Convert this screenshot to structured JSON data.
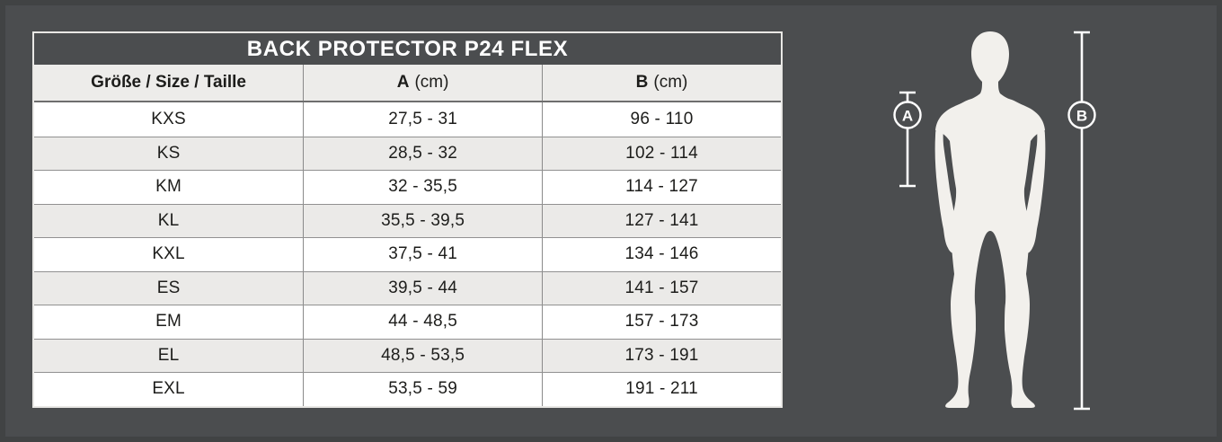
{
  "colors": {
    "page_background": "#4b4d4f",
    "table_title_background": "#4b4d4f",
    "header_row_background": "#edecea",
    "row_background": "#ffffff",
    "row_alt_background": "#ebeae8",
    "grid_line": "#8a8a8a",
    "outer_border": "#e9e8e5",
    "text_dark": "#1d1d1b",
    "text_light": "#ffffff",
    "silhouette": "#f2f0ec"
  },
  "table": {
    "title": "BACK PROTECTOR P24 FLEX",
    "columns": [
      {
        "label": "Größe / Size / Taille",
        "unit": ""
      },
      {
        "label": "A",
        "unit": "(cm)"
      },
      {
        "label": "B",
        "unit": "(cm)"
      }
    ],
    "rows": [
      {
        "size": "KXS",
        "a": "27,5 - 31",
        "b": "96 - 110"
      },
      {
        "size": "KS",
        "a": "28,5 - 32",
        "b": "102 - 114"
      },
      {
        "size": "KM",
        "a": "32 - 35,5",
        "b": "114 - 127"
      },
      {
        "size": "KL",
        "a": "35,5 - 39,5",
        "b": "127 - 141"
      },
      {
        "size": "KXL",
        "a": "37,5 - 41",
        "b": "134 - 146"
      },
      {
        "size": "ES",
        "a": "39,5 - 44",
        "b": "141 - 157"
      },
      {
        "size": "EM",
        "a": "44 - 48,5",
        "b": "157 - 173"
      },
      {
        "size": "EL",
        "a": "48,5 - 53,5",
        "b": "173 - 191"
      },
      {
        "size": "EXL",
        "a": "53,5 - 59",
        "b": "191 - 211"
      }
    ]
  },
  "figure": {
    "measure_a_label": "A",
    "measure_b_label": "B"
  },
  "chart_data": {
    "type": "table",
    "title": "BACK PROTECTOR P24 FLEX",
    "columns": [
      "Größe / Size / Taille",
      "A (cm)",
      "B (cm)"
    ],
    "rows": [
      [
        "KXS",
        "27,5 - 31",
        "96 - 110"
      ],
      [
        "KS",
        "28,5 - 32",
        "102 - 114"
      ],
      [
        "KM",
        "32 - 35,5",
        "114 - 127"
      ],
      [
        "KL",
        "35,5 - 39,5",
        "127 - 141"
      ],
      [
        "KXL",
        "37,5 - 41",
        "134 - 146"
      ],
      [
        "ES",
        "39,5 - 44",
        "141 - 157"
      ],
      [
        "EM",
        "44 - 48,5",
        "157 - 173"
      ],
      [
        "EL",
        "48,5 - 53,5",
        "173 - 191"
      ],
      [
        "EXL",
        "53,5 - 59",
        "191 - 211"
      ]
    ],
    "legend_markers": [
      "A",
      "B"
    ]
  }
}
